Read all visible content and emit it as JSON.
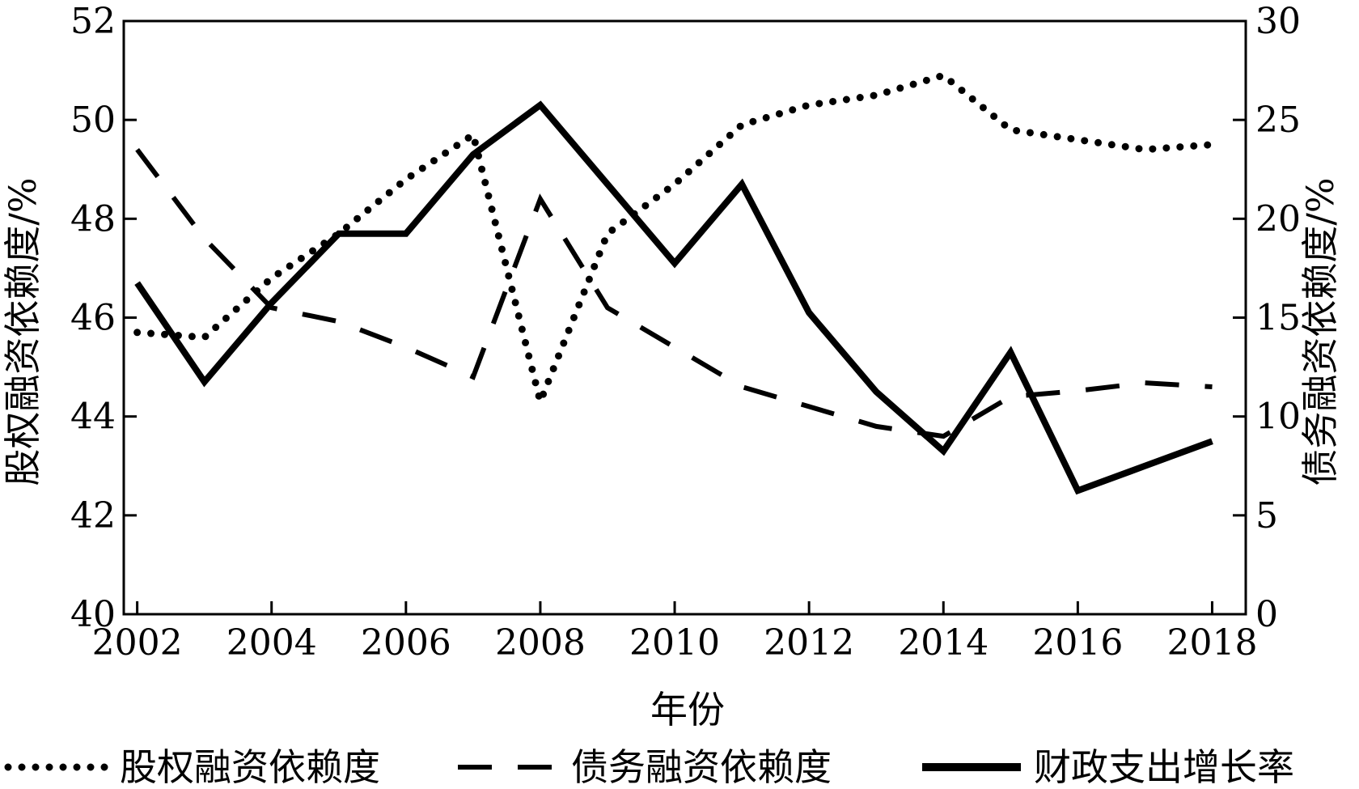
{
  "chart_data": {
    "type": "line",
    "xlabel": "年份",
    "ylabel_left": "股权融资依赖度/%",
    "ylabel_right": "债务融资依赖度/%",
    "x": [
      2002,
      2003,
      2004,
      2005,
      2006,
      2007,
      2008,
      2009,
      2010,
      2011,
      2012,
      2013,
      2014,
      2015,
      2016,
      2017,
      2018
    ],
    "xticks": [
      "2002",
      "2004",
      "2006",
      "2008",
      "2010",
      "2012",
      "2014",
      "2016",
      "2018"
    ],
    "xlim": [
      2001.8,
      2018.5
    ],
    "ylim_left": [
      40,
      52
    ],
    "yticks_left": [
      "40",
      "42",
      "44",
      "46",
      "48",
      "50",
      "52"
    ],
    "ylim_right": [
      0,
      30
    ],
    "yticks_right": [
      "0",
      "5",
      "10",
      "15",
      "20",
      "25",
      "30"
    ],
    "legend_position": "bottom",
    "series": [
      {
        "name": "股权融资依赖度",
        "axis": "left",
        "style": "dotted",
        "values": [
          45.7,
          45.6,
          46.8,
          47.7,
          48.8,
          49.7,
          44.3,
          47.7,
          48.7,
          49.9,
          50.3,
          50.5,
          50.9,
          49.8,
          49.6,
          49.4,
          49.5
        ]
      },
      {
        "name": "债务融资依赖度",
        "axis": "right",
        "style": "dashed",
        "values": [
          23.5,
          19.0,
          15.5,
          14.8,
          13.5,
          12.0,
          21.0,
          15.5,
          13.5,
          11.5,
          10.5,
          9.5,
          9.0,
          11.0,
          11.3,
          11.7,
          11.5
        ]
      },
      {
        "name": "财政支出增长率",
        "axis": "left",
        "style": "solid",
        "values": [
          46.7,
          44.7,
          46.3,
          47.7,
          47.7,
          49.3,
          50.3,
          48.7,
          47.1,
          48.7,
          46.1,
          44.5,
          43.3,
          45.3,
          42.5,
          43.0,
          43.5
        ]
      }
    ]
  }
}
